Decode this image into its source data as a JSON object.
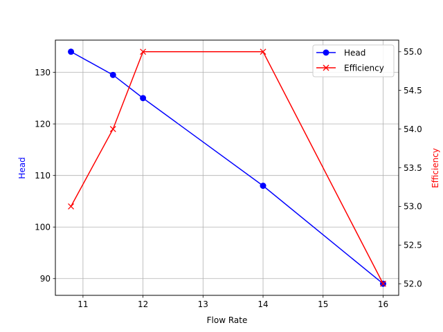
{
  "chart_data": {
    "type": "line",
    "title": "",
    "xlabel": "Flow Rate",
    "ylabel": "Head",
    "y2label": "Efficiency",
    "x": [
      10.8,
      11.5,
      12,
      14,
      16
    ],
    "series": [
      {
        "name": "Head",
        "axis": "left",
        "color": "#0000ff",
        "marker": "circle",
        "values": [
          134,
          129.5,
          125,
          108,
          89
        ]
      },
      {
        "name": "Efficiency",
        "axis": "right",
        "color": "#ff0000",
        "marker": "x",
        "values": [
          53,
          54,
          55,
          55,
          52
        ]
      }
    ],
    "xticks": [
      11,
      12,
      13,
      14,
      15,
      16
    ],
    "xtick_labels": [
      "11",
      "12",
      "13",
      "14",
      "15",
      "16"
    ],
    "yticks": [
      90,
      100,
      110,
      120,
      130
    ],
    "ytick_labels": [
      "90",
      "100",
      "110",
      "120",
      "130"
    ],
    "y2ticks": [
      52.0,
      52.5,
      53.0,
      53.5,
      54.0,
      54.5,
      55.0
    ],
    "y2tick_labels": [
      "52.0",
      "52.5",
      "53.0",
      "53.5",
      "54.0",
      "54.5",
      "55.0"
    ],
    "xlim": [
      10.54,
      16.26
    ],
    "ylim": [
      86.75,
      136.25
    ],
    "y2lim": [
      51.85,
      55.15
    ],
    "grid": true,
    "legend": {
      "position": "upper right",
      "entries": [
        "Head",
        "Efficiency"
      ]
    }
  },
  "colors": {
    "head": "#0000ff",
    "efficiency": "#ff0000",
    "grid": "#b0b0b0",
    "axis": "#000000"
  }
}
